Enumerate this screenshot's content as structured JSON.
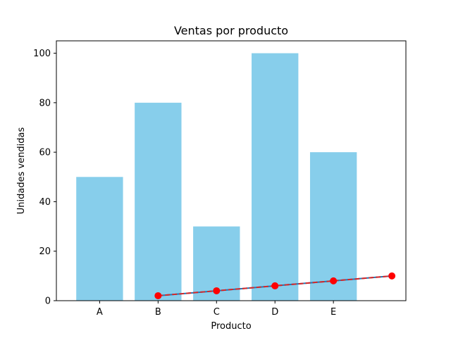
{
  "chart_data": {
    "type": "bar",
    "title": "Ventas por producto",
    "xlabel": "Producto",
    "ylabel": "Unidades vendidas",
    "categories": [
      "A",
      "B",
      "C",
      "D",
      "E"
    ],
    "values": [
      50,
      80,
      30,
      100,
      60
    ],
    "bar_color": "#87ceeb",
    "ylim": [
      0,
      105
    ],
    "yticks": [
      0,
      20,
      40,
      60,
      80,
      100
    ],
    "grid": false,
    "overlay_line": {
      "type": "line",
      "x_positions": [
        1,
        2,
        3,
        4,
        5
      ],
      "values": [
        2,
        4,
        6,
        8,
        10
      ],
      "line_color": "#1f77b4",
      "dash_color": "#d62728",
      "marker_color": "#ff0000",
      "marker": "circle"
    }
  }
}
